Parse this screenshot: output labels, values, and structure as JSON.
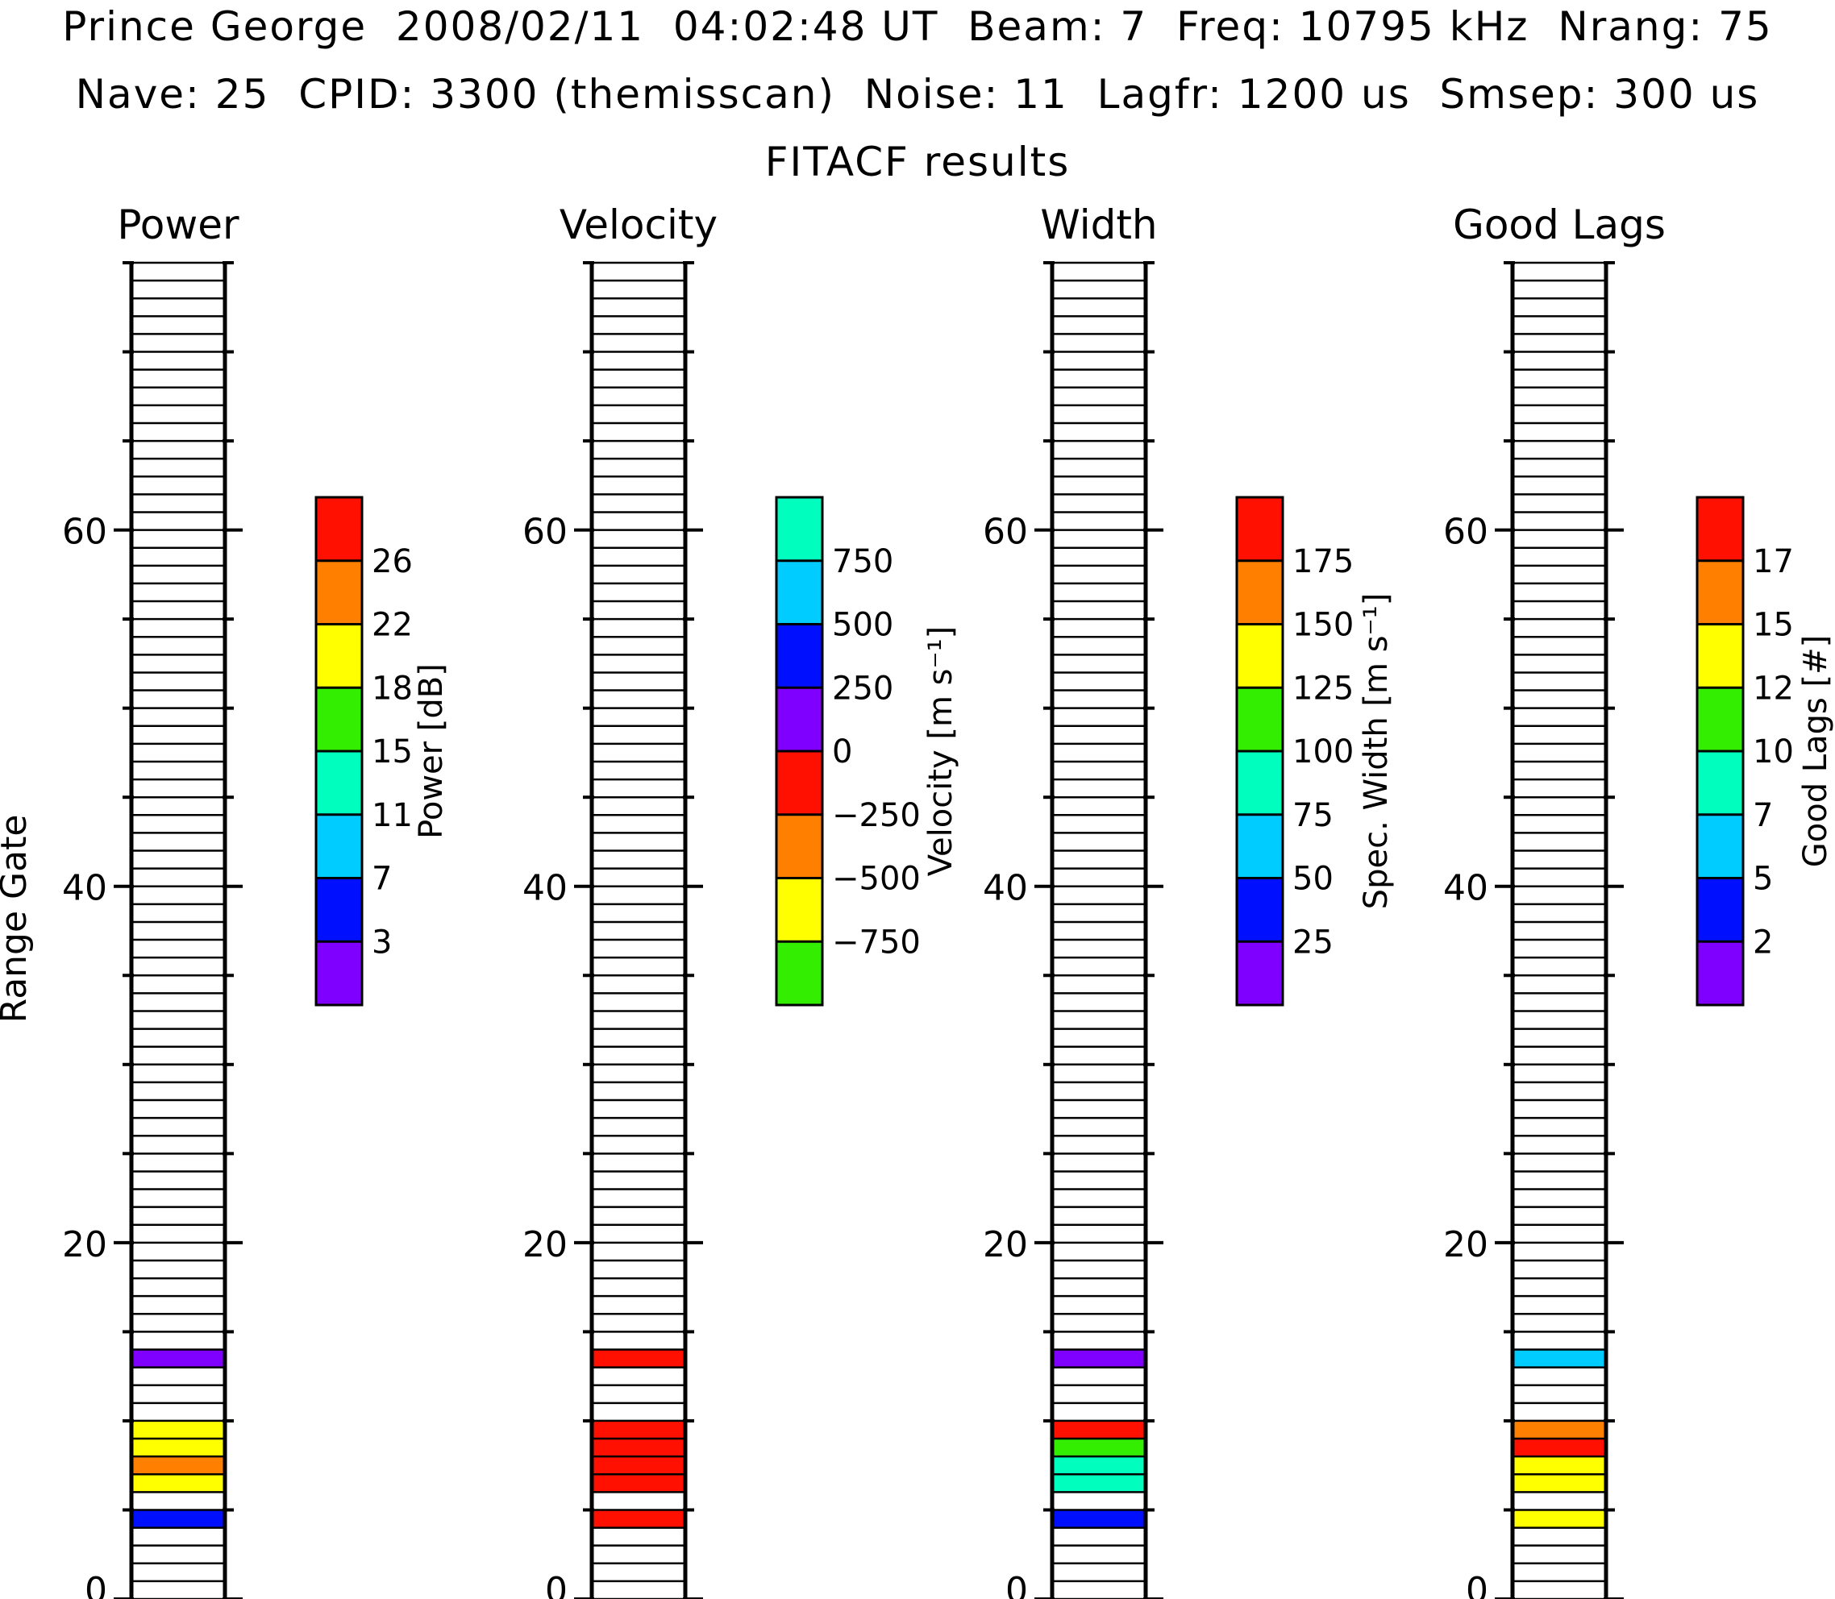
{
  "header": {
    "line1": "Prince George  2008/02/11  04:02:48 UT  Beam: 7  Freq: 10795 kHz  Nrang: 75",
    "line2": "Nave: 25  CPID: 3300 (themisscan)  Noise: 11  Lagfr: 1200 us  Smsep: 300 us",
    "line3": "FITACF results"
  },
  "y_axis_label": "Range Gate",
  "colors": {
    "purple": "#8000ff",
    "blue": "#0010ff",
    "lightblue": "#00ccff",
    "aqua": "#00ffbf",
    "green": "#33ee00",
    "yellow": "#ffff00",
    "orange": "#ff8000",
    "red": "#ff1000",
    "frame": "#000000"
  },
  "chart_data": [
    {
      "type": "heatmap",
      "title": "Power",
      "ylabel": "Range Gate",
      "ylim": [
        0,
        75
      ],
      "y_ticks": [
        "0",
        "20",
        "40",
        "60"
      ],
      "colorbar": {
        "label": "Power [dB]",
        "ticks": [
          "26",
          "22",
          "18",
          "15",
          "11",
          "7",
          "3"
        ],
        "colors": [
          "red",
          "orange",
          "yellow",
          "green",
          "aqua",
          "lightblue",
          "blue",
          "purple"
        ]
      },
      "cells": [
        {
          "gate": 4,
          "color": "blue"
        },
        {
          "gate": 6,
          "color": "yellow"
        },
        {
          "gate": 7,
          "color": "orange"
        },
        {
          "gate": 8,
          "color": "yellow"
        },
        {
          "gate": 9,
          "color": "yellow"
        },
        {
          "gate": 13,
          "color": "purple"
        }
      ]
    },
    {
      "type": "heatmap",
      "title": "Velocity",
      "ylim": [
        0,
        75
      ],
      "y_ticks": [
        "0",
        "20",
        "40",
        "60"
      ],
      "colorbar": {
        "label": "Velocity [m s⁻¹]",
        "ticks": [
          "750",
          "500",
          "250",
          "0",
          "−250",
          "−500",
          "−750"
        ],
        "colors": [
          "aqua",
          "lightblue",
          "blue",
          "purple",
          "red",
          "orange",
          "yellow",
          "green"
        ]
      },
      "cells": [
        {
          "gate": 4,
          "color": "red"
        },
        {
          "gate": 6,
          "color": "red"
        },
        {
          "gate": 7,
          "color": "red"
        },
        {
          "gate": 8,
          "color": "red"
        },
        {
          "gate": 9,
          "color": "red"
        },
        {
          "gate": 13,
          "color": "red"
        }
      ]
    },
    {
      "type": "heatmap",
      "title": "Width",
      "ylim": [
        0,
        75
      ],
      "y_ticks": [
        "0",
        "20",
        "40",
        "60"
      ],
      "colorbar": {
        "label": "Spec. Width [m s⁻¹]",
        "ticks": [
          "175",
          "150",
          "125",
          "100",
          "75",
          "50",
          "25"
        ],
        "colors": [
          "red",
          "orange",
          "yellow",
          "green",
          "aqua",
          "lightblue",
          "blue",
          "purple"
        ]
      },
      "cells": [
        {
          "gate": 4,
          "color": "blue"
        },
        {
          "gate": 6,
          "color": "aqua"
        },
        {
          "gate": 7,
          "color": "aqua"
        },
        {
          "gate": 8,
          "color": "green"
        },
        {
          "gate": 9,
          "color": "red"
        },
        {
          "gate": 13,
          "color": "purple"
        }
      ]
    },
    {
      "type": "heatmap",
      "title": "Good Lags",
      "ylim": [
        0,
        75
      ],
      "y_ticks": [
        "0",
        "20",
        "40",
        "60"
      ],
      "colorbar": {
        "label": "Good Lags [#]",
        "ticks": [
          "17",
          "15",
          "12",
          "10",
          "7",
          "5",
          "2"
        ],
        "colors": [
          "red",
          "orange",
          "yellow",
          "green",
          "aqua",
          "lightblue",
          "blue",
          "purple"
        ]
      },
      "cells": [
        {
          "gate": 4,
          "color": "yellow"
        },
        {
          "gate": 6,
          "color": "yellow"
        },
        {
          "gate": 7,
          "color": "yellow"
        },
        {
          "gate": 8,
          "color": "red"
        },
        {
          "gate": 9,
          "color": "orange"
        },
        {
          "gate": 13,
          "color": "lightblue"
        }
      ]
    }
  ]
}
